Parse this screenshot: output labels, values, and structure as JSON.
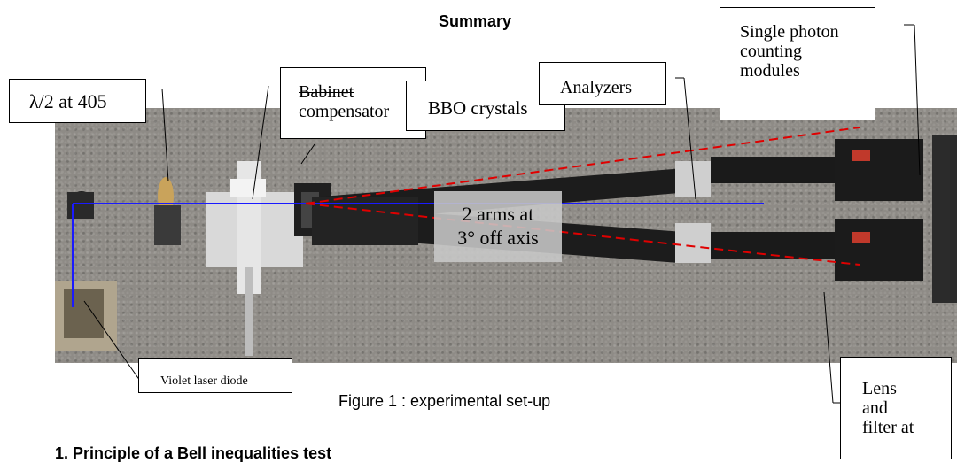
{
  "page": {
    "summary_title": "Summary",
    "figure_caption": "Figure 1 : experimental set-up",
    "section_heading": "1. Principle of a Bell inequalities test"
  },
  "labels": {
    "half_wave": "λ/2 at 405",
    "babinet_line1": "Babinet",
    "babinet_line2": "compensator",
    "bbo": "BBO crystals",
    "analyzers": "Analyzers",
    "spcm_line1": "Single photon",
    "spcm_line2": "counting",
    "spcm_line3": "modules",
    "arms_line1": "2 arms at",
    "arms_line2": "3° off axis",
    "laser": "Violet laser diode",
    "lens_line1": "Lens",
    "lens_line2": "and",
    "lens_line3": "filter at"
  },
  "colors": {
    "beam_pump": "#1a1aff",
    "beam_photons": "#e00000",
    "table": "#8e8b86"
  }
}
